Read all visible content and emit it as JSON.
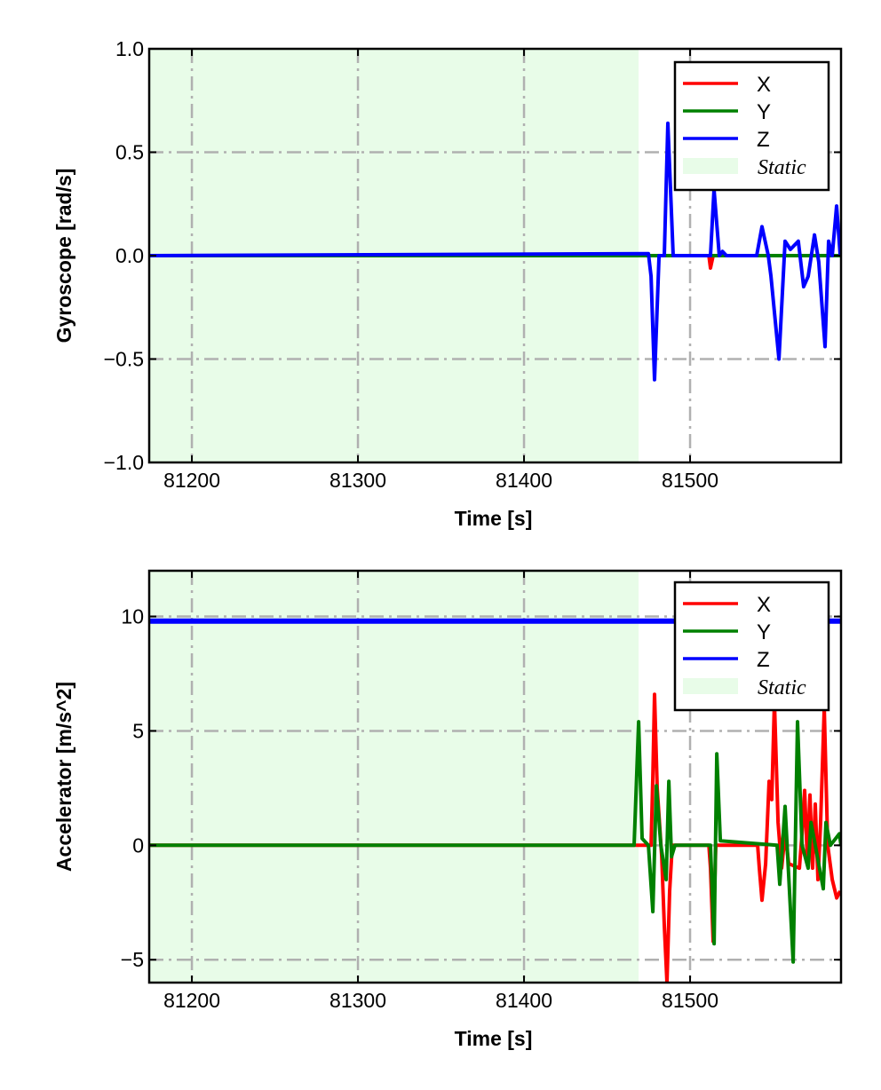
{
  "chart_data": [
    {
      "type": "line",
      "title": "",
      "xlabel": "Time [s]",
      "ylabel": "Gyroscope [rad/s]",
      "xlim": [
        81174.3,
        81590.9
      ],
      "ylim": [
        -1.0,
        1.0
      ],
      "xticks": [
        81200,
        81300,
        81400,
        81500
      ],
      "xtick_labels": [
        "81200",
        "81300",
        "81400",
        "81500"
      ],
      "yticks": [
        -1.0,
        -0.5,
        0.0,
        0.5,
        1.0
      ],
      "ytick_labels": [
        "−1.0",
        "−0.5",
        "0.0",
        "0.5",
        "1.0"
      ],
      "grid": true,
      "legend": {
        "placement": "top-right",
        "entries": [
          "X",
          "Y",
          "Z",
          "Static"
        ]
      },
      "static_region": [
        81174.3,
        81469.0
      ],
      "series": [
        {
          "name": "X",
          "color": "#ff0000",
          "x": [
            81174.3,
            81511.3,
            81512.3,
            81513.9,
            81590.9
          ],
          "y": [
            0,
            0,
            -0.06,
            0,
            0
          ]
        },
        {
          "name": "Y",
          "color": "#008000",
          "x": [
            81174.3,
            81590.9
          ],
          "y": [
            0,
            0
          ]
        },
        {
          "name": "Z",
          "color": "#0000ff",
          "x": [
            81174.3,
            81474.9,
            81476.5,
            81478.6,
            81481.3,
            81484.5,
            81486.6,
            81489.8,
            81512.3,
            81514.4,
            81517.6,
            81519.5,
            81521.9,
            81540.1,
            81543.3,
            81547.1,
            81548.7,
            81553.5,
            81557.2,
            81560.4,
            81565.2,
            81568.4,
            81571.1,
            81574.9,
            81577.5,
            81581.3,
            81583.4,
            81585.6,
            81588.2,
            81590.4
          ],
          "y": [
            0,
            0.01,
            -0.1,
            -0.6,
            0,
            0,
            0.64,
            0,
            0,
            0.32,
            0,
            0.02,
            0,
            0,
            0.14,
            0,
            -0.1,
            -0.5,
            0.07,
            0.03,
            0.07,
            -0.15,
            -0.1,
            0.1,
            -0.03,
            -0.44,
            0.07,
            0,
            0.24,
            0
          ]
        }
      ]
    },
    {
      "type": "line",
      "title": "",
      "xlabel": "Time [s]",
      "ylabel": "Accelerator [m/s^2]",
      "xlim": [
        81174.3,
        81590.9
      ],
      "ylim": [
        -6,
        12
      ],
      "xticks": [
        81200,
        81300,
        81400,
        81500
      ],
      "xtick_labels": [
        "81200",
        "81300",
        "81400",
        "81500"
      ],
      "yticks": [
        -5,
        0,
        5,
        10
      ],
      "ytick_labels": [
        "−5",
        "0",
        "5",
        "10"
      ],
      "grid": true,
      "legend": {
        "placement": "top-right",
        "entries": [
          "X",
          "Y",
          "Z",
          "Static"
        ]
      },
      "static_region": [
        81174.3,
        81469.0
      ],
      "series": [
        {
          "name": "X",
          "color": "#ff0000",
          "x": [
            81174.3,
            81472.2,
            81476.5,
            81477.6,
            81478.6,
            81480.2,
            81482.9,
            81484.5,
            81486.1,
            81487.7,
            81489.3,
            81511.3,
            81512.3,
            81513.9,
            81515.5,
            81540.7,
            81541.7,
            81543.3,
            81545.5,
            81547.6,
            81549.2,
            81550.8,
            81553.0,
            81555.1,
            81557.2,
            81559.4,
            81565.8,
            81567.4,
            81569.0,
            81570.6,
            81572.2,
            81573.8,
            81575.4,
            81577.0,
            81578.6,
            81580.8,
            81582.9,
            81585.6,
            81588.3,
            81590.4
          ],
          "y": [
            0,
            0,
            0,
            3,
            6.6,
            2.5,
            -0.5,
            -3.5,
            -6,
            -2,
            0,
            0,
            -1,
            -4.2,
            0,
            0,
            -1,
            -2.4,
            -0.8,
            2.8,
            2,
            6.3,
            1.0,
            -1.0,
            0.5,
            -0.8,
            -1,
            0.5,
            2.4,
            -0.6,
            2.2,
            -1,
            1.8,
            -1.5,
            1.0,
            6,
            0,
            -1.5,
            -2.3,
            -2
          ]
        },
        {
          "name": "Y",
          "color": "#008000",
          "x": [
            81174.3,
            81466.3,
            81469.0,
            81471.1,
            81474.9,
            81477.6,
            81479.7,
            81482.4,
            81485.6,
            81487.2,
            81488.8,
            81490.9,
            81512.3,
            81514.5,
            81516.1,
            81518.2,
            81552.4,
            81554.0,
            81557.2,
            81562.1,
            81564.7,
            81567.4,
            81571.1,
            81572.8,
            81575.4,
            81580.2,
            81581.8,
            81584.5,
            81589.9,
            81590.9
          ],
          "y": [
            0,
            0,
            5.4,
            0.3,
            0,
            -2.9,
            2.6,
            0,
            -1.5,
            2.8,
            -0.5,
            0,
            0,
            -4.3,
            4.0,
            0.2,
            0,
            -1.7,
            1.7,
            -5.1,
            5.4,
            0,
            -1.0,
            1.0,
            0,
            -1.9,
            1.0,
            0,
            0.5,
            0
          ]
        },
        {
          "name": "Z",
          "color": "#0000ff",
          "x": [
            81174.3,
            81590.9
          ],
          "y": [
            9.8,
            9.8
          ]
        }
      ]
    }
  ]
}
